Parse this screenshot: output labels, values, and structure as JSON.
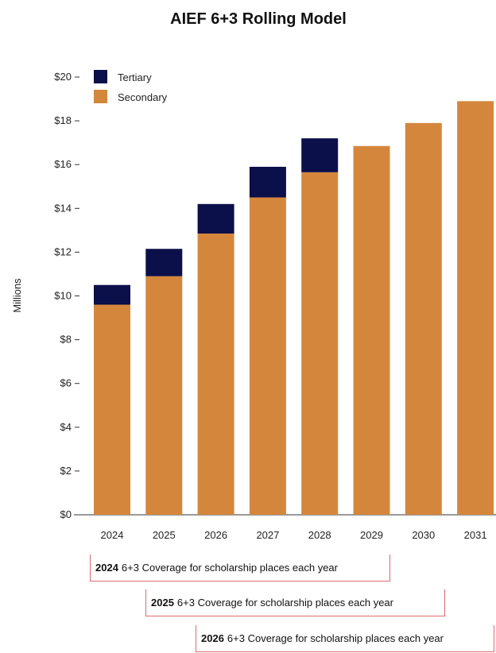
{
  "chart_data": {
    "type": "bar",
    "stacked": true,
    "title": "AIEF 6+3 Rolling Model",
    "ylabel": "Millions",
    "xlabel": "",
    "ylim": [
      0,
      20
    ],
    "yticks": [
      "$0",
      "$2",
      "$4",
      "$6",
      "$8",
      "$10",
      "$12",
      "$14",
      "$16",
      "$18",
      "$20"
    ],
    "categories": [
      "2024",
      "2025",
      "2026",
      "2027",
      "2028",
      "2029",
      "2030",
      "2031"
    ],
    "series": [
      {
        "name": "Secondary",
        "color": "#d4873c",
        "values": [
          9.6,
          10.9,
          12.85,
          14.5,
          15.65,
          16.85,
          17.9,
          18.9
        ]
      },
      {
        "name": "Tertiary",
        "color": "#0b0f4a",
        "values": [
          0.9,
          1.25,
          1.35,
          1.4,
          1.55,
          0,
          0,
          0
        ]
      }
    ],
    "legend_position": "top-left"
  },
  "coverage": [
    {
      "year": "2024",
      "text": "6+3 Coverage for scholarship places each year"
    },
    {
      "year": "2025",
      "text": "6+3 Coverage for scholarship places each year"
    },
    {
      "year": "2026",
      "text": "6+3 Coverage for scholarship places each year"
    }
  ],
  "colors": {
    "bracket": "#e06a6e",
    "axis": "#333333"
  }
}
